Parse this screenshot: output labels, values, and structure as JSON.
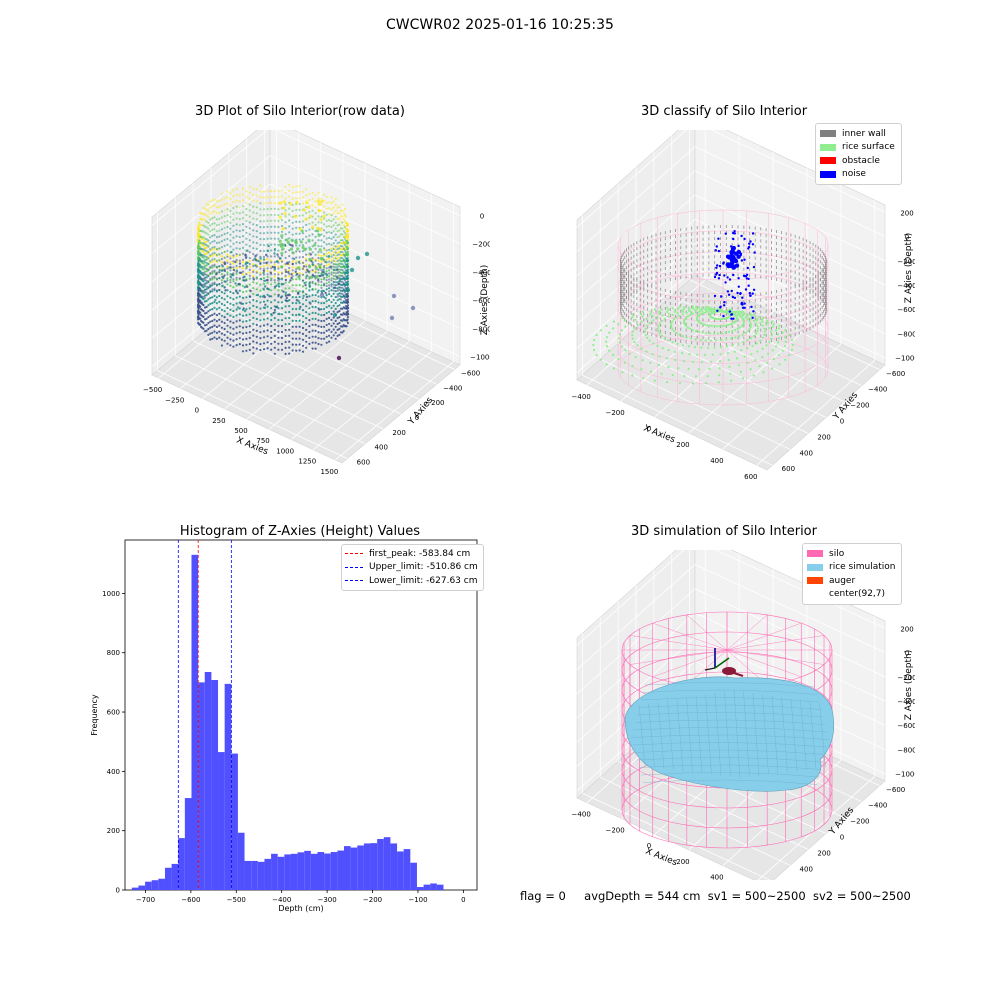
{
  "figure": {
    "suptitle": "CWCWR02 2025-01-16 10:25:35",
    "status": {
      "flag": "flag = 0",
      "avg_depth": "avgDepth = 544 cm",
      "sv1": "sv1 = 500~2500",
      "sv2": "sv2 = 500~2500"
    }
  },
  "panel_raw": {
    "title": "3D Plot of Silo Interior(row data)",
    "xlabel": "X Axies",
    "ylabel": "Y Axies",
    "zlabel": "Z Axies (Depth)",
    "xticks": [
      "−500",
      "−250",
      "0",
      "250",
      "500",
      "750",
      "1000",
      "1250",
      "1500"
    ],
    "yticks": [
      "−600",
      "−400",
      "−200",
      "0",
      "200",
      "400",
      "600"
    ],
    "zticks": [
      "−1000",
      "−800",
      "−600",
      "−400",
      "−200",
      "0"
    ],
    "colormap": [
      "#440154",
      "#3b528b",
      "#21918c",
      "#5ec962",
      "#fde725"
    ]
  },
  "panel_classify": {
    "title": "3D classify of Silo Interior",
    "xlabel": "X Axies",
    "ylabel": "Y Axies",
    "zlabel": "Z Axies (Depth)",
    "xticks": [
      "−400",
      "−200",
      "0",
      "200",
      "400",
      "600"
    ],
    "yticks": [
      "−600",
      "−400",
      "−200",
      "0",
      "200",
      "400",
      "600"
    ],
    "zticks": [
      "−1000",
      "−800",
      "−600",
      "−400",
      "−200",
      "0",
      "200"
    ],
    "legend": [
      {
        "label": "inner wall",
        "color": "#808080"
      },
      {
        "label": "rice surface",
        "color": "#90ee90"
      },
      {
        "label": "obstacle",
        "color": "#ff0000"
      },
      {
        "label": "noise",
        "color": "#0000ff"
      }
    ],
    "cylinder_color": "#ffb6d9"
  },
  "panel_sim": {
    "title": "3D simulation of Silo Interior",
    "xlabel": "X Axies",
    "ylabel": "Y Axies",
    "zlabel": "Z Axies (Depth)",
    "xticks": [
      "−400",
      "−200",
      "0",
      "200",
      "400",
      "600"
    ],
    "yticks": [
      "−600",
      "−400",
      "−200",
      "0",
      "200",
      "400",
      "600"
    ],
    "zticks": [
      "−1000",
      "−800",
      "−600",
      "−400",
      "−200",
      "0",
      "200"
    ],
    "legend": [
      {
        "label": "silo",
        "color": "#ff69b4"
      },
      {
        "label": "rice simulation",
        "color": "#87ceeb"
      },
      {
        "label": "auger",
        "color": "#ff4500"
      },
      {
        "label": "center(92,7)",
        "color": "#ffffff"
      }
    ]
  },
  "chart_data": {
    "type": "bar",
    "title": "Histogram of Z-Axies (Height) Values",
    "xlabel": "Depth (cm)",
    "ylabel": "Frequency",
    "xlim": [
      -745,
      30
    ],
    "ylim": [
      0,
      1180
    ],
    "xticks": [
      -700,
      -600,
      -500,
      -400,
      -300,
      -200,
      -100,
      0
    ],
    "yticks": [
      0,
      200,
      400,
      600,
      800,
      1000
    ],
    "bar_color": "#5050ff",
    "bin_edges_start": -730,
    "bin_width": 14.6,
    "values": [
      8,
      15,
      28,
      33,
      38,
      75,
      88,
      175,
      310,
      1130,
      700,
      735,
      708,
      465,
      695,
      460,
      193,
      98,
      98,
      95,
      105,
      122,
      112,
      120,
      122,
      127,
      132,
      122,
      128,
      123,
      128,
      133,
      148,
      143,
      150,
      157,
      158,
      172,
      178,
      157,
      130,
      138,
      92,
      10,
      18,
      22,
      18
    ],
    "vlines": [
      {
        "label": "first_peak: -583.84 cm",
        "x": -583.84,
        "color": "#ff0000"
      },
      {
        "label": "Upper_limit: -510.86 cm",
        "x": -510.86,
        "color": "#0000ff"
      },
      {
        "label": "Lower_limit: -627.63 cm",
        "x": -627.63,
        "color": "#0000ff"
      }
    ],
    "legend_position": "top-right"
  }
}
